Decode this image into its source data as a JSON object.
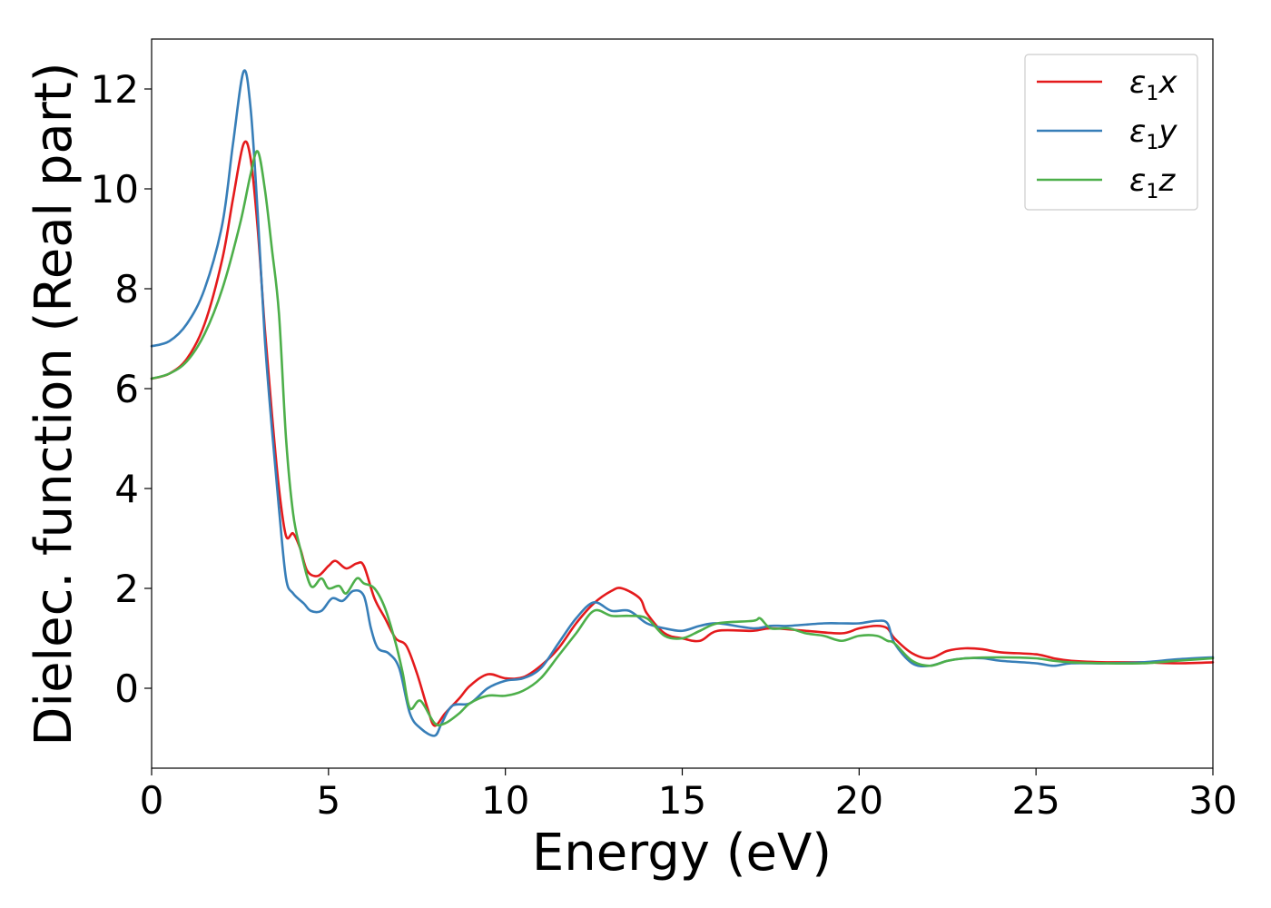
{
  "chart_data": {
    "type": "line",
    "xlabel": "Energy (eV)",
    "ylabel": "Dielec. function (Real part)",
    "xlim": [
      0,
      30
    ],
    "ylim": [
      -1.6,
      13.0
    ],
    "xticks": [
      0,
      5,
      10,
      15,
      20,
      25,
      30
    ],
    "xtick_labels": [
      "0",
      "5",
      "10",
      "15",
      "20",
      "25",
      "30"
    ],
    "yticks": [
      0,
      2,
      4,
      6,
      8,
      10,
      12
    ],
    "ytick_labels": [
      "0",
      "2",
      "4",
      "6",
      "8",
      "10",
      "12"
    ],
    "grid": false,
    "legend_position": "top-right",
    "series": [
      {
        "name": "ε1x",
        "legend_base": "ε",
        "legend_sub": "1",
        "legend_suffix": "x",
        "color": "#e41a1c",
        "points": [
          [
            0,
            6.2
          ],
          [
            0.5,
            6.3
          ],
          [
            1.0,
            6.6
          ],
          [
            1.5,
            7.3
          ],
          [
            2.0,
            8.6
          ],
          [
            2.3,
            9.8
          ],
          [
            2.6,
            10.9
          ],
          [
            2.8,
            10.6
          ],
          [
            3.0,
            9.2
          ],
          [
            3.2,
            7.2
          ],
          [
            3.4,
            5.5
          ],
          [
            3.6,
            4.0
          ],
          [
            3.8,
            3.05
          ],
          [
            4.0,
            3.1
          ],
          [
            4.2,
            2.8
          ],
          [
            4.4,
            2.35
          ],
          [
            4.7,
            2.25
          ],
          [
            5.0,
            2.45
          ],
          [
            5.2,
            2.55
          ],
          [
            5.5,
            2.4
          ],
          [
            5.8,
            2.5
          ],
          [
            6.0,
            2.45
          ],
          [
            6.3,
            1.8
          ],
          [
            6.6,
            1.4
          ],
          [
            6.9,
            1.0
          ],
          [
            7.2,
            0.85
          ],
          [
            7.5,
            0.3
          ],
          [
            7.8,
            -0.4
          ],
          [
            8.0,
            -0.75
          ],
          [
            8.3,
            -0.5
          ],
          [
            8.7,
            -0.2
          ],
          [
            9.0,
            0.05
          ],
          [
            9.5,
            0.28
          ],
          [
            10.0,
            0.2
          ],
          [
            10.5,
            0.22
          ],
          [
            11.0,
            0.45
          ],
          [
            11.5,
            0.8
          ],
          [
            12.0,
            1.3
          ],
          [
            12.5,
            1.7
          ],
          [
            13.0,
            1.95
          ],
          [
            13.3,
            2.0
          ],
          [
            13.8,
            1.8
          ],
          [
            14.0,
            1.5
          ],
          [
            14.5,
            1.1
          ],
          [
            15.0,
            1.0
          ],
          [
            15.5,
            0.95
          ],
          [
            16.0,
            1.15
          ],
          [
            17.0,
            1.15
          ],
          [
            17.5,
            1.2
          ],
          [
            18.5,
            1.15
          ],
          [
            19.5,
            1.1
          ],
          [
            20.0,
            1.2
          ],
          [
            20.5,
            1.25
          ],
          [
            20.8,
            1.2
          ],
          [
            21.0,
            1.0
          ],
          [
            21.5,
            0.7
          ],
          [
            22.0,
            0.6
          ],
          [
            22.5,
            0.75
          ],
          [
            23.0,
            0.8
          ],
          [
            23.5,
            0.78
          ],
          [
            24.0,
            0.72
          ],
          [
            25.0,
            0.68
          ],
          [
            25.5,
            0.6
          ],
          [
            26.0,
            0.55
          ],
          [
            27.0,
            0.52
          ],
          [
            28.0,
            0.52
          ],
          [
            29.0,
            0.5
          ],
          [
            30.0,
            0.52
          ]
        ]
      },
      {
        "name": "ε1y",
        "legend_base": "ε",
        "legend_sub": "1",
        "legend_suffix": "y",
        "color": "#377eb8",
        "points": [
          [
            0,
            6.85
          ],
          [
            0.5,
            6.95
          ],
          [
            1.0,
            7.3
          ],
          [
            1.5,
            8.0
          ],
          [
            2.0,
            9.3
          ],
          [
            2.3,
            10.9
          ],
          [
            2.6,
            12.35
          ],
          [
            2.8,
            11.6
          ],
          [
            3.0,
            9.5
          ],
          [
            3.2,
            7.0
          ],
          [
            3.4,
            5.2
          ],
          [
            3.6,
            3.6
          ],
          [
            3.8,
            2.2
          ],
          [
            4.0,
            1.9
          ],
          [
            4.3,
            1.7
          ],
          [
            4.5,
            1.55
          ],
          [
            4.8,
            1.55
          ],
          [
            5.1,
            1.8
          ],
          [
            5.4,
            1.75
          ],
          [
            5.7,
            1.95
          ],
          [
            6.0,
            1.85
          ],
          [
            6.2,
            1.2
          ],
          [
            6.4,
            0.8
          ],
          [
            6.7,
            0.7
          ],
          [
            7.0,
            0.4
          ],
          [
            7.3,
            -0.5
          ],
          [
            7.6,
            -0.8
          ],
          [
            8.0,
            -0.95
          ],
          [
            8.2,
            -0.7
          ],
          [
            8.5,
            -0.35
          ],
          [
            9.0,
            -0.3
          ],
          [
            9.5,
            0.0
          ],
          [
            10.0,
            0.15
          ],
          [
            10.5,
            0.2
          ],
          [
            11.0,
            0.4
          ],
          [
            11.5,
            0.9
          ],
          [
            12.0,
            1.4
          ],
          [
            12.5,
            1.72
          ],
          [
            13.0,
            1.55
          ],
          [
            13.5,
            1.55
          ],
          [
            14.0,
            1.3
          ],
          [
            14.5,
            1.2
          ],
          [
            15.0,
            1.15
          ],
          [
            15.5,
            1.25
          ],
          [
            16.0,
            1.3
          ],
          [
            17.0,
            1.2
          ],
          [
            17.5,
            1.25
          ],
          [
            18.0,
            1.25
          ],
          [
            19.0,
            1.3
          ],
          [
            19.5,
            1.3
          ],
          [
            20.0,
            1.3
          ],
          [
            20.5,
            1.35
          ],
          [
            20.8,
            1.3
          ],
          [
            21.0,
            0.9
          ],
          [
            21.5,
            0.5
          ],
          [
            22.0,
            0.45
          ],
          [
            22.5,
            0.55
          ],
          [
            23.0,
            0.6
          ],
          [
            23.5,
            0.6
          ],
          [
            24.0,
            0.55
          ],
          [
            25.0,
            0.5
          ],
          [
            25.5,
            0.45
          ],
          [
            26.0,
            0.5
          ],
          [
            27.0,
            0.5
          ],
          [
            28.0,
            0.52
          ],
          [
            29.0,
            0.58
          ],
          [
            30.0,
            0.62
          ]
        ]
      },
      {
        "name": "ε1z",
        "legend_base": "ε",
        "legend_sub": "1",
        "legend_suffix": "z",
        "color": "#4daf4a",
        "points": [
          [
            0,
            6.2
          ],
          [
            0.5,
            6.3
          ],
          [
            1.0,
            6.55
          ],
          [
            1.5,
            7.1
          ],
          [
            2.0,
            8.0
          ],
          [
            2.5,
            9.3
          ],
          [
            2.8,
            10.3
          ],
          [
            3.0,
            10.75
          ],
          [
            3.2,
            10.0
          ],
          [
            3.4,
            8.8
          ],
          [
            3.6,
            7.5
          ],
          [
            3.8,
            5.0
          ],
          [
            4.0,
            3.5
          ],
          [
            4.2,
            2.8
          ],
          [
            4.5,
            2.05
          ],
          [
            4.8,
            2.2
          ],
          [
            5.0,
            2.0
          ],
          [
            5.3,
            2.05
          ],
          [
            5.5,
            1.9
          ],
          [
            5.8,
            2.2
          ],
          [
            6.0,
            2.1
          ],
          [
            6.3,
            2.0
          ],
          [
            6.6,
            1.6
          ],
          [
            6.9,
            0.9
          ],
          [
            7.1,
            0.3
          ],
          [
            7.3,
            -0.4
          ],
          [
            7.6,
            -0.25
          ],
          [
            8.0,
            -0.7
          ],
          [
            8.3,
            -0.7
          ],
          [
            8.7,
            -0.5
          ],
          [
            9.0,
            -0.3
          ],
          [
            9.5,
            -0.15
          ],
          [
            10.0,
            -0.15
          ],
          [
            10.5,
            -0.05
          ],
          [
            11.0,
            0.2
          ],
          [
            11.5,
            0.65
          ],
          [
            12.0,
            1.1
          ],
          [
            12.5,
            1.55
          ],
          [
            13.0,
            1.45
          ],
          [
            13.5,
            1.45
          ],
          [
            14.0,
            1.4
          ],
          [
            14.5,
            1.05
          ],
          [
            15.0,
            1.0
          ],
          [
            15.5,
            1.15
          ],
          [
            16.0,
            1.3
          ],
          [
            17.0,
            1.35
          ],
          [
            17.2,
            1.4
          ],
          [
            17.5,
            1.2
          ],
          [
            18.0,
            1.2
          ],
          [
            18.5,
            1.1
          ],
          [
            19.0,
            1.05
          ],
          [
            19.5,
            0.95
          ],
          [
            20.0,
            1.05
          ],
          [
            20.5,
            1.05
          ],
          [
            20.8,
            0.95
          ],
          [
            21.0,
            0.9
          ],
          [
            21.5,
            0.55
          ],
          [
            22.0,
            0.45
          ],
          [
            22.5,
            0.55
          ],
          [
            23.0,
            0.6
          ],
          [
            24.0,
            0.62
          ],
          [
            25.0,
            0.6
          ],
          [
            25.5,
            0.55
          ],
          [
            26.0,
            0.52
          ],
          [
            27.0,
            0.5
          ],
          [
            28.0,
            0.5
          ],
          [
            29.0,
            0.55
          ],
          [
            30.0,
            0.6
          ]
        ]
      }
    ]
  }
}
